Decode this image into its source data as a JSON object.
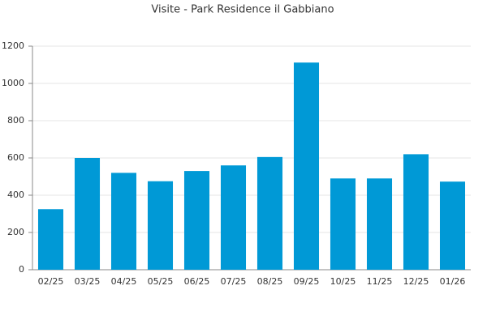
{
  "chart_data": {
    "type": "bar",
    "title": "Visite - Park Residence il Gabbiano",
    "categories": [
      "02/25",
      "03/25",
      "04/25",
      "05/25",
      "06/25",
      "07/25",
      "08/25",
      "09/25",
      "10/25",
      "11/25",
      "12/25",
      "01/26"
    ],
    "values": [
      325,
      600,
      520,
      475,
      530,
      560,
      605,
      1112,
      490,
      490,
      620,
      473
    ],
    "color": "#0099d6",
    "ylim": [
      0,
      1200
    ],
    "yticks": [
      0,
      200,
      400,
      600,
      800,
      1000,
      1200
    ],
    "grid": true
  }
}
